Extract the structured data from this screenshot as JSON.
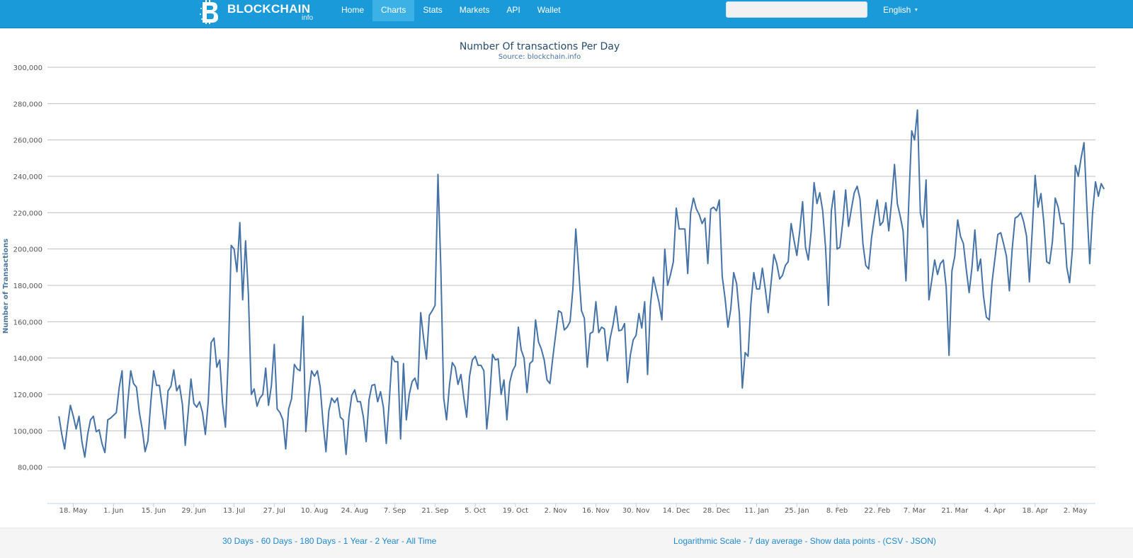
{
  "navbar": {
    "brand_name": "BLOCKCHAIN",
    "brand_sub": "info",
    "brand_icon": "bitcoin-b-logo-icon",
    "nav_items": [
      "Home",
      "Charts",
      "Stats",
      "Markets",
      "API",
      "Wallet"
    ],
    "active_item": "Charts",
    "search_value": "",
    "language": "English",
    "colors": {
      "bar": "#1b9ad9",
      "active_tab": "#3cb1e6"
    }
  },
  "chart_data": {
    "type": "line",
    "title": "Number Of transactions Per Day",
    "subtitle": "Source: blockchain.info",
    "ylabel": "Number of Transactions",
    "xlabel": "",
    "ylim": [
      60000,
      300000
    ],
    "y_ticks": [
      80000,
      100000,
      120000,
      140000,
      160000,
      180000,
      200000,
      220000,
      240000,
      260000,
      280000,
      300000
    ],
    "x_range": [
      "2014-05-09",
      "2015-05-09"
    ],
    "x_tick_dates": [
      "2014-05-18",
      "2014-06-01",
      "2014-06-15",
      "2014-06-29",
      "2014-07-13",
      "2014-07-27",
      "2014-08-10",
      "2014-08-24",
      "2014-09-07",
      "2014-09-21",
      "2014-10-05",
      "2014-10-19",
      "2014-11-02",
      "2014-11-16",
      "2014-11-30",
      "2014-12-14",
      "2014-12-28",
      "2015-01-11",
      "2015-01-25",
      "2015-02-08",
      "2015-02-22",
      "2015-03-07",
      "2015-03-21",
      "2015-04-04",
      "2015-04-18",
      "2015-05-02"
    ],
    "x_tick_labels": [
      "18. May",
      "1. Jun",
      "15. Jun",
      "29. Jun",
      "13. Jul",
      "27. Jul",
      "10. Aug",
      "24. Aug",
      "7. Sep",
      "21. Sep",
      "5. Oct",
      "19. Oct",
      "2. Nov",
      "16. Nov",
      "30. Nov",
      "14. Dec",
      "28. Dec",
      "11. Jan",
      "25. Jan",
      "8. Feb",
      "22. Feb",
      "7. Mar",
      "21. Mar",
      "4. Apr",
      "18. Apr",
      "2. May"
    ],
    "grid": true,
    "legend": "none",
    "color": "#4572a7",
    "series": [
      {
        "start_date": "2014-05-13",
        "values": [
          108000,
          98000,
          90000,
          103000,
          114000,
          108000,
          101000,
          108000,
          94000,
          85500,
          98000,
          106000,
          108000,
          99500,
          100500,
          93000,
          88000,
          106000,
          107000,
          108500,
          110000,
          124000,
          133000,
          96000,
          116000,
          133000,
          126000,
          124000,
          110000,
          101000,
          88500,
          94500,
          116000,
          133000,
          125000,
          125000,
          113000,
          101000,
          122000,
          124500,
          133500,
          122000,
          125000,
          114500,
          92000,
          110000,
          128500,
          115000,
          113000,
          116000,
          110000,
          98000,
          116000,
          148500,
          151000,
          135000,
          139000,
          115000,
          102000,
          141000,
          202000,
          200000,
          187500,
          214500,
          172000,
          204500,
          175000,
          120000,
          123000,
          113500,
          118000,
          120000,
          134500,
          114000,
          125000,
          147500,
          112000,
          110000,
          106000,
          90000,
          112000,
          117500,
          136500,
          134000,
          133000,
          163000,
          99500,
          120000,
          133000,
          130000,
          133000,
          124000,
          104000,
          88500,
          111000,
          118000,
          115500,
          118000,
          107500,
          106000,
          87000,
          108000,
          119500,
          122500,
          116000,
          116000,
          108000,
          94000,
          117000,
          125000,
          125500,
          116000,
          121500,
          113000,
          93000,
          115000,
          141000,
          138000,
          138000,
          95500,
          137000,
          106000,
          120000,
          127000,
          129000,
          123000,
          165000,
          151000,
          139500,
          163500,
          166000,
          169000,
          241000,
          190000,
          118000,
          106000,
          125000,
          137500,
          135000,
          125500,
          131000,
          118500,
          107500,
          130000,
          139000,
          141000,
          136000,
          136000,
          133000,
          101000,
          117500,
          142000,
          139000,
          139500,
          120000,
          128000,
          106000,
          126500,
          133000,
          136000,
          157000,
          144500,
          140000,
          121000,
          137000,
          138500,
          161000,
          149000,
          145000,
          139000,
          128000,
          126000,
          140000,
          153000,
          166000,
          165000,
          155500,
          157000,
          160000,
          178000,
          211000,
          189000,
          166000,
          162000,
          135000,
          153500,
          154500,
          171000,
          154000,
          157000,
          156000,
          138500,
          151000,
          158500,
          168500,
          155000,
          155500,
          159000,
          126500,
          141500,
          150000,
          152500,
          164500,
          156500,
          171000,
          131000,
          169000,
          184500,
          177500,
          170500,
          161000,
          200000,
          180000,
          186000,
          193000,
          222500,
          211000,
          211000,
          211000,
          186500,
          220000,
          228000,
          222000,
          219000,
          214000,
          217000,
          192000,
          222000,
          223000,
          221000,
          227000,
          185000,
          173000,
          157000,
          167000,
          187000,
          181000,
          164000,
          123500,
          143000,
          141000,
          170000,
          187000,
          178000,
          178000,
          189500,
          178000,
          165000,
          181000,
          197000,
          192000,
          183500,
          185500,
          191000,
          193000,
          214000,
          205000,
          196500,
          210000,
          226000,
          201000,
          194000,
          210000,
          236500,
          225000,
          231000,
          221000,
          201000,
          169000,
          221000,
          232000,
          200000,
          201000,
          215000,
          232500,
          212500,
          222000,
          231000,
          234500,
          227500,
          203000,
          191000,
          189000,
          206000,
          217000,
          227000,
          213000,
          215000,
          225500,
          210000,
          226000,
          246500,
          225000,
          218000,
          210000,
          182500,
          226000,
          265000,
          260000,
          276500,
          220000,
          212000,
          238000,
          172000,
          183000,
          194000,
          186000,
          192000,
          194000,
          179000,
          141500,
          188000,
          196000,
          216000,
          207000,
          203000,
          189000,
          176000,
          190000,
          210500,
          188000,
          194500,
          174000,
          162500,
          161000,
          182000,
          195000,
          208000,
          209000,
          203000,
          196000,
          177000,
          200000,
          217000,
          218000,
          220000,
          215000,
          207000,
          182000,
          211000,
          240500,
          223000,
          230500,
          215000,
          193000,
          192000,
          204000,
          228000,
          223000,
          214000,
          214000,
          190000,
          181500,
          200500,
          246000,
          240000,
          250000,
          258500,
          224000,
          192000,
          220000,
          237000,
          229000,
          236000,
          233000
        ]
      }
    ]
  },
  "footer": {
    "ranges": [
      "30 Days",
      "60 Days",
      "180 Days",
      "1 Year",
      "2 Year",
      "All Time"
    ],
    "options": [
      "Logarithmic Scale",
      "7 day average",
      "Show data points"
    ],
    "exports": [
      "CSV",
      "JSON"
    ]
  }
}
